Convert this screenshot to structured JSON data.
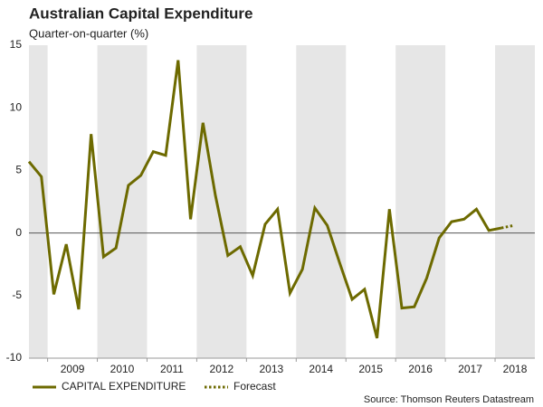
{
  "chart_data": {
    "type": "line",
    "title": "Australian Capital Expenditure",
    "subtitle": "Quarter-on-quarter (%)",
    "source": "Source: Thomson Reuters Datastream",
    "series": [
      {
        "name": "CAPITAL EXPENDITURE",
        "color": "#6d6a00",
        "style": "solid",
        "x": [
          2008.625,
          2008.875,
          2009.125,
          2009.375,
          2009.625,
          2009.875,
          2010.125,
          2010.375,
          2010.625,
          2010.875,
          2011.125,
          2011.375,
          2011.625,
          2011.875,
          2012.125,
          2012.375,
          2012.625,
          2012.875,
          2013.125,
          2013.375,
          2013.625,
          2013.875,
          2014.125,
          2014.375,
          2014.625,
          2014.875,
          2015.125,
          2015.375,
          2015.625,
          2015.875,
          2016.125,
          2016.375,
          2016.625,
          2016.875,
          2017.125,
          2017.375,
          2017.625,
          2017.875,
          2018.125
        ],
        "values": [
          5.7,
          4.5,
          -4.9,
          -0.9,
          -6.1,
          7.9,
          -1.9,
          -1.2,
          3.8,
          4.6,
          6.5,
          6.2,
          13.8,
          1.1,
          8.8,
          3.0,
          -1.8,
          -1.1,
          -3.4,
          0.7,
          1.9,
          -4.8,
          -2.9,
          2.0,
          0.6,
          -2.4,
          -5.3,
          -4.5,
          -8.4,
          1.9,
          -6.0,
          -5.9,
          -3.6,
          -0.4,
          0.9,
          1.1,
          1.9,
          0.2,
          0.4
        ]
      },
      {
        "name": "Forecast",
        "color": "#6d6a00",
        "style": "dotted",
        "x": [
          2018.125,
          2018.375
        ],
        "values": [
          0.4,
          0.6
        ]
      }
    ],
    "xlim": [
      2008.625,
      2018.8
    ],
    "xticks": [
      2009,
      2010,
      2011,
      2012,
      2013,
      2014,
      2015,
      2016,
      2017,
      2018
    ],
    "ylim": [
      -10,
      15
    ],
    "yticks": [
      15,
      10,
      5,
      0,
      -5,
      -10
    ],
    "band_color": "#e6e6e6",
    "legend": "bottom"
  }
}
